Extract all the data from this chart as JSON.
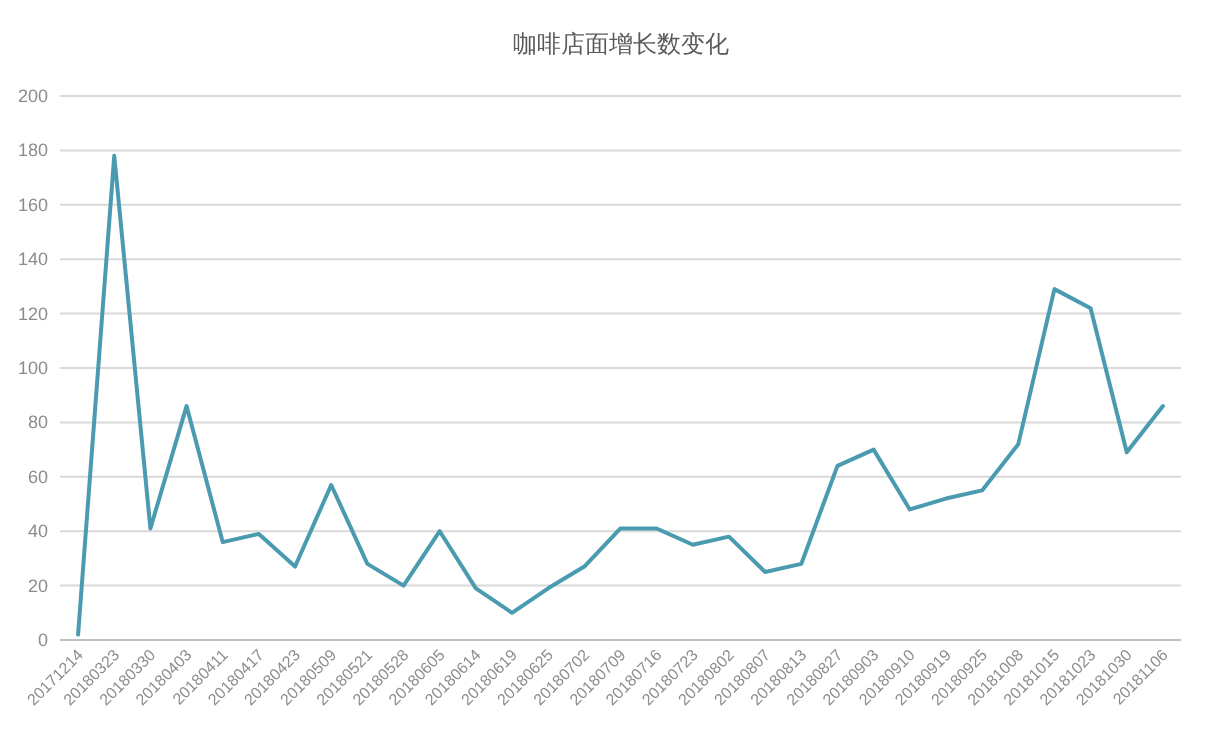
{
  "chart_data": {
    "type": "line",
    "title": "咖啡店面增长数变化",
    "categories": [
      "20171214",
      "20180323",
      "20180330",
      "20180403",
      "20180411",
      "20180417",
      "20180423",
      "20180509",
      "20180521",
      "20180528",
      "20180605",
      "20180614",
      "20180619",
      "20180625",
      "20180702",
      "20180709",
      "20180716",
      "20180723",
      "20180802",
      "20180807",
      "20180813",
      "20180827",
      "20180903",
      "20180910",
      "20180919",
      "20180925",
      "20181008",
      "20181015",
      "20181023",
      "20181030",
      "20181106"
    ],
    "values": [
      2,
      178,
      41,
      86,
      36,
      39,
      27,
      57,
      28,
      20,
      40,
      19,
      10,
      19,
      27,
      41,
      41,
      35,
      38,
      25,
      28,
      64,
      70,
      48,
      52,
      55,
      72,
      129,
      122,
      69,
      86
    ],
    "color": "#4a9bb0",
    "ylim": [
      0,
      200
    ],
    "yticks": [
      0,
      20,
      40,
      60,
      80,
      100,
      120,
      140,
      160,
      180,
      200
    ],
    "grid": "y",
    "marker": "none"
  }
}
